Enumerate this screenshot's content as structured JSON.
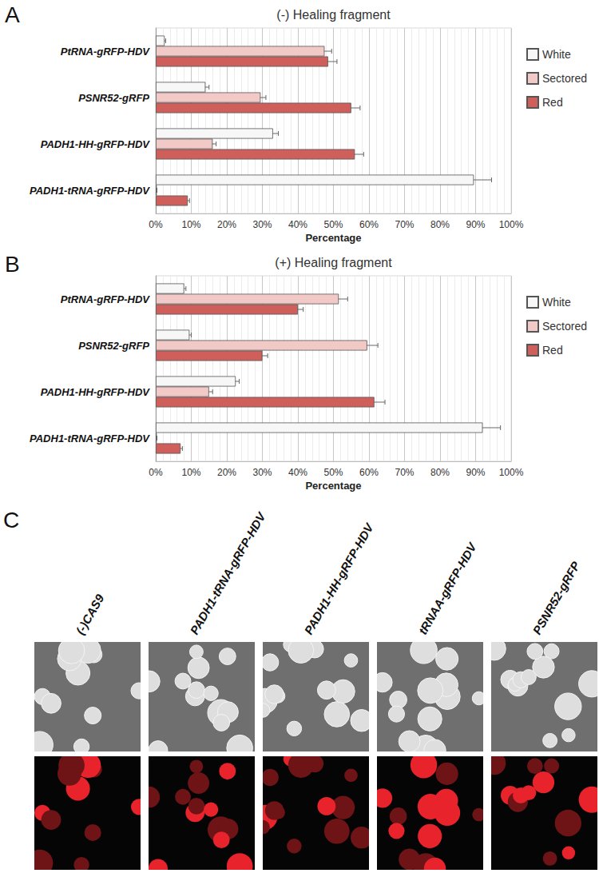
{
  "chart_data": [
    {
      "type": "bar",
      "annotation": "A",
      "title": "(-) Healing fragment",
      "orientation": "horizontal",
      "categories": [
        "PtRNA-gRFP-HDV",
        "PSNR52-gRFP",
        "PADH1-HH-gRFP-HDV",
        "PADH1-tRNA-gRFP-HDV"
      ],
      "series": [
        {
          "name": "White",
          "color": "#f7f7f7",
          "values": [
            2.5,
            14,
            33,
            89.5
          ],
          "errors": [
            0.3,
            1,
            1.5,
            5
          ]
        },
        {
          "name": "Sectored",
          "color": "#f1c9c6",
          "values": [
            47.5,
            29.5,
            16,
            0.3
          ],
          "errors": [
            2,
            1.5,
            1,
            0
          ]
        },
        {
          "name": "Red",
          "color": "#cf5f5b",
          "values": [
            48.5,
            55,
            56,
            9
          ],
          "errors": [
            2.5,
            2.5,
            2.5,
            0.5
          ]
        }
      ],
      "xlabel": "Percentage",
      "xlim": [
        0,
        100
      ],
      "xticks": [
        {
          "value": 0,
          "label": "0%"
        },
        {
          "value": 10,
          "label": "10%"
        },
        {
          "value": 20,
          "label": "20%"
        },
        {
          "value": 30,
          "label": "30%"
        },
        {
          "value": 40,
          "label": "40%"
        },
        {
          "value": 50,
          "label": "50%"
        },
        {
          "value": 60,
          "label": "60%"
        },
        {
          "value": 70,
          "label": "70%"
        },
        {
          "value": 80,
          "label": "80%"
        },
        {
          "value": 90,
          "label": "90%"
        },
        {
          "value": 100,
          "label": "100%"
        }
      ],
      "grid": true,
      "legend": "right"
    },
    {
      "type": "bar",
      "annotation": "B",
      "title": "(+) Healing fragment",
      "orientation": "horizontal",
      "categories": [
        "PtRNA-gRFP-HDV",
        "PSNR52-gRFP",
        "PADH1-HH-gRFP-HDV",
        "PADH1-tRNA-gRFP-HDV"
      ],
      "series": [
        {
          "name": "White",
          "color": "#f7f7f7",
          "values": [
            8,
            9.5,
            22.5,
            92
          ],
          "errors": [
            0.5,
            0.5,
            1,
            5
          ]
        },
        {
          "name": "Sectored",
          "color": "#f1c9c6",
          "values": [
            51.5,
            59.5,
            15,
            0.3
          ],
          "errors": [
            2.5,
            3,
            1,
            0
          ]
        },
        {
          "name": "Red",
          "color": "#cf5f5b",
          "values": [
            40,
            30,
            61.5,
            7
          ],
          "errors": [
            1.5,
            1.5,
            3,
            0.5
          ]
        }
      ],
      "xlabel": "Percentage",
      "xlim": [
        0,
        100
      ],
      "xticks": [
        {
          "value": 0,
          "label": "0%"
        },
        {
          "value": 10,
          "label": "10%"
        },
        {
          "value": 20,
          "label": "20%"
        },
        {
          "value": 30,
          "label": "30%"
        },
        {
          "value": 40,
          "label": "40%"
        },
        {
          "value": 50,
          "label": "50%"
        },
        {
          "value": 60,
          "label": "60%"
        },
        {
          "value": 70,
          "label": "70%"
        },
        {
          "value": 80,
          "label": "80%"
        },
        {
          "value": 90,
          "label": "90%"
        },
        {
          "value": 100,
          "label": "100%"
        }
      ],
      "grid": true,
      "legend": "right"
    }
  ],
  "panel_c": {
    "annotation": "C",
    "columns": [
      "(-)CAS9",
      "PADH1-tRNA-gRFP-HDV",
      "PADH1-HH-gRFP-HDV",
      "tRNAA-gRFP-HDV",
      "PSNR52-gRFP"
    ]
  }
}
